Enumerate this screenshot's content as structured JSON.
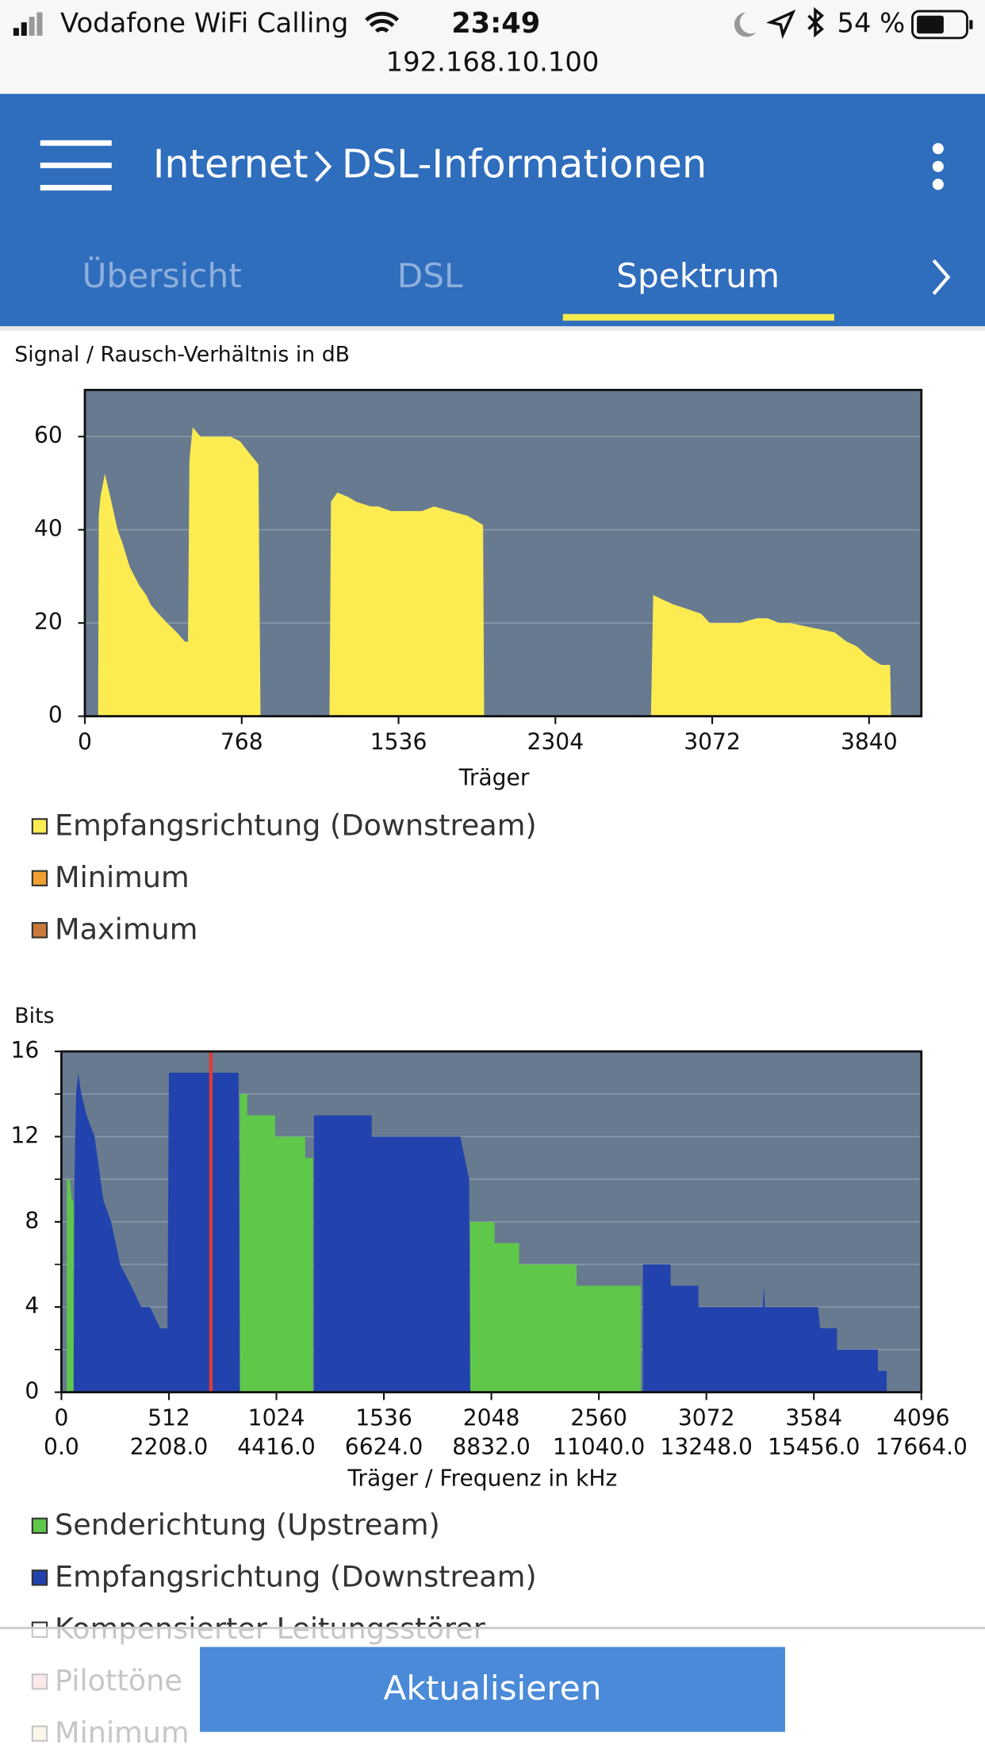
{
  "status_bar": {
    "carrier": "Vodafone WiFi Calling",
    "time": "23:49",
    "battery": "54 %",
    "url": "192.168.10.100"
  },
  "header": {
    "section": "Internet",
    "page": "DSL-Informationen"
  },
  "tabs": {
    "items": [
      "Übersicht",
      "DSL",
      "Spektrum"
    ],
    "active": 2
  },
  "chart_data": [
    {
      "type": "area",
      "title": "Signal / Rausch-Verhältnis in dB",
      "x_label": "Träger",
      "xlim": [
        0,
        4096
      ],
      "xticks": [
        0,
        768,
        1536,
        2304,
        3072,
        3840
      ],
      "ylim": [
        0,
        70
      ],
      "yticks": [
        0,
        20,
        40,
        60
      ],
      "grid": true,
      "series": [
        {
          "name": "Empfangsrichtung (Downstream)",
          "color": "#fcec52",
          "x": [
            0,
            65,
            68,
            76,
            98,
            130,
            160,
            185,
            220,
            267,
            300,
            321,
            360,
            403,
            450,
            490,
            505,
            512,
            528,
            566,
            620,
            713,
            760,
            795,
            850,
            860,
            1198,
            1205,
            1236,
            1290,
            1329,
            1400,
            1438,
            1500,
            1574,
            1650,
            1710,
            1790,
            1874,
            1950,
            1955,
            2772,
            2783,
            2830,
            2881,
            2950,
            3017,
            3060,
            3126,
            3208,
            3290,
            3344,
            3400,
            3453,
            3560,
            3671,
            3730,
            3780,
            3830,
            3862,
            3900,
            3943,
            3948
          ],
          "values": [
            0,
            0,
            43,
            47,
            52,
            46,
            40,
            37,
            32,
            28,
            26,
            24,
            22,
            20,
            18,
            16,
            16,
            55,
            62,
            60,
            60,
            60,
            59,
            57,
            54,
            0,
            0,
            46,
            48,
            47,
            46,
            45,
            45,
            44,
            44,
            44,
            45,
            44,
            43,
            41,
            0,
            0,
            26,
            25,
            24,
            23,
            22,
            20,
            20,
            20,
            21,
            21,
            20,
            20,
            19,
            18,
            16,
            15,
            13,
            12,
            11,
            11,
            0
          ]
        }
      ],
      "legend_extra": [
        {
          "name": "Minimum",
          "color": "#f0a030"
        },
        {
          "name": "Maximum",
          "color": "#c87a3a"
        }
      ]
    },
    {
      "type": "area",
      "title": "Bits",
      "x_label": "Träger / Frequenz in kHz",
      "xlim": [
        0,
        4096
      ],
      "xticks": [
        0,
        512,
        1024,
        1536,
        2048,
        2560,
        3072,
        3584,
        4096
      ],
      "xtick_freq_labels": [
        "0.0",
        "2208.0",
        "4416.0",
        "6624.0",
        "8832.0",
        "11040.0",
        "13248.0",
        "15456.0",
        "17664.0"
      ],
      "ylim": [
        0,
        16
      ],
      "yticks": [
        0,
        4,
        8,
        12,
        16
      ],
      "ygrid": [
        2,
        4,
        6,
        8,
        10,
        12,
        14
      ],
      "grid": true,
      "pilot_tones": [
        712
      ],
      "pilot_color": "#e53935",
      "series": [
        {
          "name": "Senderichtung (Upstream)",
          "color": "#5fc84a",
          "x": [
            26,
            26,
            40,
            50,
            58,
            58,
            200,
            850,
            850,
            885,
            885,
            1018,
            1018,
            1161,
            1161,
            1198,
            1198,
            1500,
            1947,
            1947,
            2063,
            2063,
            2180,
            2180,
            2454,
            2454,
            2760,
            2760
          ],
          "values": [
            0,
            10,
            10,
            9,
            9,
            0,
            null,
            0,
            14,
            14,
            13,
            13,
            12,
            12,
            11,
            11,
            0,
            null,
            0,
            8,
            8,
            7,
            7,
            6,
            6,
            5,
            5,
            0
          ]
        },
        {
          "name": "Empfangsrichtung (Downstream)",
          "color": "#2243ad",
          "x": [
            58,
            62,
            70,
            80,
            95,
            120,
            158,
            200,
            237,
            280,
            332,
            380,
            422,
            470,
            505,
            512,
            844,
            850,
            1000,
            1203,
            1203,
            1478,
            1478,
            1900,
            1942,
            1947,
            2300,
            2770,
            2770,
            2902,
            2902,
            3034,
            3034,
            3340,
            3346,
            3351,
            3604,
            3614,
            3694,
            3694,
            3889,
            3889,
            3931,
            3931
          ],
          "values": [
            0,
            10,
            14,
            15,
            14,
            13,
            12,
            9,
            8,
            6,
            5,
            4,
            4,
            3,
            3,
            15,
            15,
            0,
            null,
            0,
            13,
            13,
            12,
            12,
            10,
            0,
            null,
            0,
            6,
            6,
            5,
            5,
            4,
            4,
            5,
            4,
            4,
            3,
            3,
            2,
            2,
            1,
            1,
            0
          ]
        }
      ],
      "legend_extra": [
        {
          "name": "Kompensierter Leitungsstörer",
          "color": "#ffffff"
        },
        {
          "name": "Pilottöne",
          "color": "#f4b4b4"
        },
        {
          "name": "Minimum",
          "color": "#f3dcb0"
        }
      ]
    }
  ],
  "button": "Aktualisieren"
}
